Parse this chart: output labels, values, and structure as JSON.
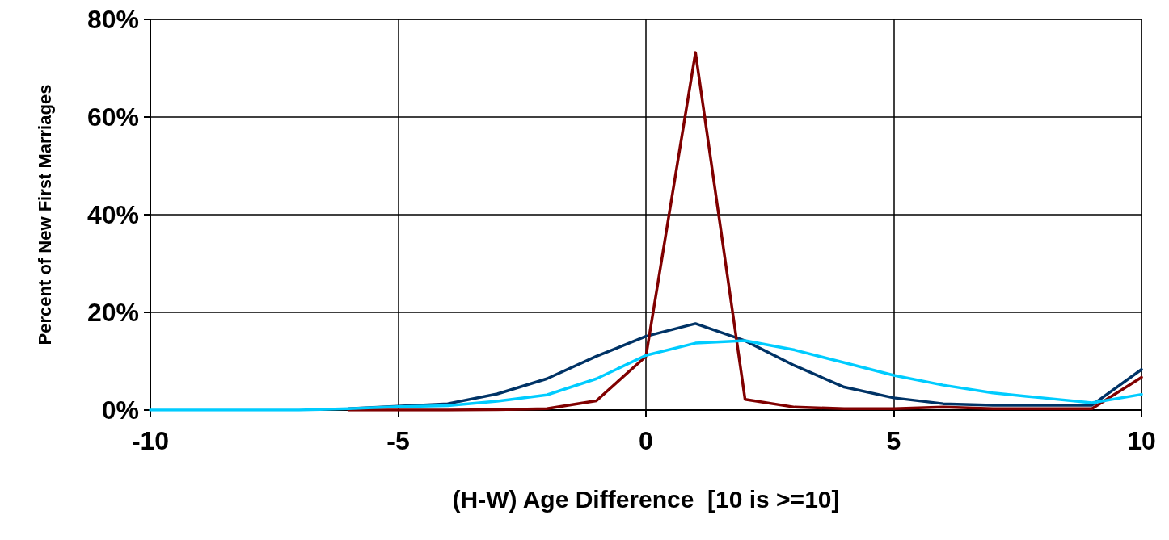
{
  "chart_data": {
    "type": "line",
    "xlabel": "(H-W) Age Difference  [10 is >=10]",
    "ylabel": "Percent of New First Marriages",
    "x": [
      -10,
      -9,
      -8,
      -7,
      -6,
      -5,
      -4,
      -3,
      -2,
      -1,
      0,
      1,
      2,
      3,
      4,
      5,
      6,
      7,
      8,
      9,
      10
    ],
    "series": [
      {
        "color": "#003366",
        "values": [
          null,
          null,
          null,
          null,
          0.3,
          0.8,
          1.3,
          3.3,
          6.4,
          11.0,
          15.1,
          17.7,
          14.2,
          9.1,
          4.7,
          2.5,
          1.3,
          1.0,
          1.0,
          1.0,
          8.3
        ]
      },
      {
        "color": "#800000",
        "values": [
          null,
          null,
          null,
          null,
          0,
          0,
          0,
          0.1,
          0.3,
          1.9,
          11.0,
          73.2,
          2.2,
          0.6,
          0.3,
          0.3,
          0.6,
          0.3,
          0.3,
          0.3,
          6.7
        ]
      },
      {
        "color": "#00ccff",
        "values": [
          0,
          0,
          0,
          0,
          0.3,
          0.7,
          0.9,
          1.8,
          3.1,
          6.4,
          11.2,
          13.7,
          14.2,
          12.3,
          9.7,
          7.1,
          5.1,
          3.5,
          2.5,
          1.5,
          3.2
        ]
      }
    ],
    "xlim": [
      -10,
      10
    ],
    "xticks": [
      -10,
      -5,
      0,
      5,
      10
    ],
    "ylim": [
      0,
      80
    ],
    "yticks": [
      {
        "value": 0,
        "label": "0%"
      },
      {
        "value": 20,
        "label": "20%"
      },
      {
        "value": 40,
        "label": "40%"
      },
      {
        "value": 60,
        "label": "60%"
      },
      {
        "value": 80,
        "label": "80%"
      }
    ],
    "grid": true,
    "marker": "none",
    "line_style": "solid"
  }
}
